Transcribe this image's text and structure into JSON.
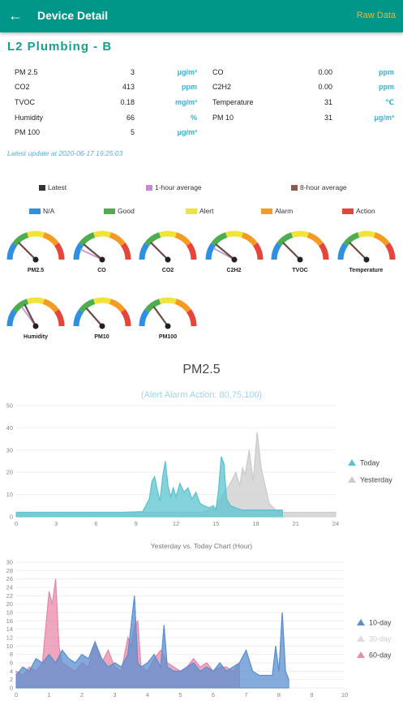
{
  "header": {
    "back_icon": "arrow-left-icon",
    "title": "Device Detail",
    "raw_data_label": "Raw Data"
  },
  "device": {
    "name": "L2 Plumbing - B"
  },
  "metrics": [
    {
      "label": "PM 2.5",
      "value": "3",
      "unit": "μg/m³"
    },
    {
      "label": "CO",
      "value": "0.00",
      "unit": "ppm"
    },
    {
      "label": "CO2",
      "value": "413",
      "unit": "ppm"
    },
    {
      "label": "C2H2",
      "value": "0.00",
      "unit": "ppm"
    },
    {
      "label": "TVOC",
      "value": "0.18",
      "unit": "mg/m³"
    },
    {
      "label": "Temperature",
      "value": "31",
      "unit": "℃"
    },
    {
      "label": "Humidity",
      "value": "66",
      "unit": "%"
    },
    {
      "label": "PM 10",
      "value": "31",
      "unit": "μg/m³"
    },
    {
      "label": "PM 100",
      "value": "5",
      "unit": "μg/m³"
    }
  ],
  "latest_update": "Latest update at 2020-06-17 19:25:03",
  "needle_legend": [
    {
      "label": "Latest",
      "color": "#333333"
    },
    {
      "label": "1-hour average",
      "color": "#c48ad6"
    },
    {
      "label": "8-hour average",
      "color": "#8c5a4e"
    }
  ],
  "status_legend": [
    {
      "label": "N/A",
      "color": "#2f8fe0"
    },
    {
      "label": "Good",
      "color": "#4cae4f"
    },
    {
      "label": "Alert",
      "color": "#f1e33a"
    },
    {
      "label": "Alarm",
      "color": "#f59a23"
    },
    {
      "label": "Action",
      "color": "#e5453a"
    }
  ],
  "gauges": [
    {
      "label": "PM2.5",
      "level": 0.25,
      "avg_level": null
    },
    {
      "label": "CO",
      "level": 0.22,
      "avg_level": 0.14
    },
    {
      "label": "CO2",
      "level": 0.25,
      "avg_level": null
    },
    {
      "label": "C2H2",
      "level": 0.22,
      "avg_level": 0.16
    },
    {
      "label": "TVOC",
      "level": 0.25,
      "avg_level": null
    },
    {
      "label": "Temperature",
      "level": 0.25,
      "avg_level": null
    },
    {
      "label": "Humidity",
      "level": 0.35,
      "avg_level": 0.3
    },
    {
      "label": "PM10",
      "level": 0.27,
      "avg_level": null
    },
    {
      "label": "PM100",
      "level": 0.3,
      "avg_level": null
    }
  ],
  "chart_data": [
    {
      "type": "area",
      "title": "PM2.5",
      "subtitle": "(Alert Alarm Action: 80,75,100)",
      "ylim": [
        0,
        50
      ],
      "yticks": [
        0,
        10,
        20,
        30,
        40,
        50
      ],
      "xlim": [
        0,
        24
      ],
      "xticks": [
        0,
        3,
        6,
        9,
        12,
        15,
        18,
        21,
        24
      ],
      "legend_position": "right",
      "series": [
        {
          "name": "Today",
          "color": "#5bc3cf",
          "x": [
            0,
            2,
            4,
            6,
            8,
            9.5,
            10,
            10.2,
            10.4,
            10.6,
            10.8,
            11,
            11.2,
            11.4,
            11.6,
            11.8,
            12,
            12.3,
            12.6,
            12.9,
            13.2,
            13.5,
            13.8,
            14.1,
            14.5,
            14.8,
            15,
            15.2,
            15.4,
            15.6,
            15.8,
            16.1,
            16.5,
            17,
            18,
            19,
            20
          ],
          "y": [
            2,
            2,
            2,
            2,
            2,
            2.3,
            8,
            16,
            18,
            12,
            7,
            18,
            25,
            14,
            9,
            13,
            9,
            15,
            11,
            13,
            8,
            11,
            6,
            5,
            4,
            5,
            3,
            12,
            27,
            24,
            8,
            5,
            4,
            3,
            3,
            3,
            3
          ]
        },
        {
          "name": "Yesterday",
          "color": "#cccccc",
          "x": [
            0,
            3,
            6,
            9,
            10,
            12,
            14,
            15,
            15.5,
            16,
            16.5,
            16.8,
            17,
            17.2,
            17.5,
            17.8,
            18.1,
            18.4,
            18.7,
            19,
            19.5,
            20,
            21,
            22,
            23,
            24
          ],
          "y": [
            2,
            2,
            2,
            2,
            2,
            2,
            2,
            4,
            10,
            14,
            20,
            14,
            22,
            19,
            30,
            16,
            38,
            22,
            14,
            6,
            3,
            2,
            2,
            2,
            2,
            2
          ]
        }
      ]
    },
    {
      "type": "area",
      "title": "Yesterday vs. Today Chart (Hour)",
      "ylim": [
        0,
        30
      ],
      "yticks": [
        0,
        2,
        4,
        6,
        8,
        10,
        12,
        14,
        16,
        18,
        20,
        22,
        24,
        26,
        28,
        30
      ],
      "xlim": [
        0,
        10
      ],
      "xticks": [
        0,
        1,
        2,
        3,
        4,
        5,
        6,
        7,
        8,
        9,
        10
      ],
      "legend_position": "right",
      "series": [
        {
          "name": "10-day",
          "color": "#5b8fcf",
          "x": [
            0,
            0.2,
            0.4,
            0.6,
            0.8,
            1.0,
            1.2,
            1.4,
            1.6,
            1.8,
            2.0,
            2.2,
            2.4,
            2.6,
            2.8,
            3.0,
            3.2,
            3.4,
            3.6,
            3.7,
            3.8,
            4.0,
            4.2,
            4.4,
            4.5,
            4.6,
            4.8,
            5.0,
            5.2,
            5.4,
            5.6,
            5.8,
            6.0,
            6.2,
            6.4,
            6.6,
            6.8,
            7.0,
            7.2,
            7.4,
            7.6,
            7.8,
            7.9,
            8.0,
            8.1,
            8.2,
            8.3
          ],
          "y": [
            3,
            5,
            4,
            7,
            6,
            8,
            6,
            9,
            7,
            6,
            8,
            7,
            11,
            7,
            5,
            6,
            5,
            8,
            22,
            6,
            5,
            6,
            8,
            5,
            15,
            5,
            4,
            4,
            5,
            6,
            4,
            5,
            4,
            6,
            4,
            5,
            6,
            9,
            4,
            3,
            3,
            3,
            10,
            4,
            18,
            4,
            2
          ]
        },
        {
          "name": "30-day",
          "color": "#dddddd",
          "x": [
            0,
            8.3
          ],
          "y": [
            0,
            0
          ]
        },
        {
          "name": "60-day",
          "color": "#e88aa8",
          "x": [
            0,
            0.2,
            0.4,
            0.6,
            0.8,
            1.0,
            1.1,
            1.2,
            1.3,
            1.4,
            1.6,
            1.8,
            2.0,
            2.2,
            2.4,
            2.6,
            2.8,
            3.0,
            3.2,
            3.4,
            3.5,
            3.6,
            3.7,
            3.8,
            4.0,
            4.2,
            4.4,
            4.6,
            4.8,
            5.0,
            5.2,
            5.4,
            5.6,
            5.8,
            6.0,
            6.2,
            6.4,
            6.6,
            6.8
          ],
          "y": [
            4,
            3,
            5,
            4,
            6,
            23,
            20,
            26,
            10,
            6,
            5,
            4,
            6,
            5,
            11,
            6,
            9,
            5,
            4,
            12,
            10,
            15,
            16,
            5,
            4,
            7,
            9,
            6,
            5,
            4,
            5,
            7,
            5,
            6,
            4,
            5,
            5,
            4,
            6
          ]
        }
      ]
    }
  ]
}
